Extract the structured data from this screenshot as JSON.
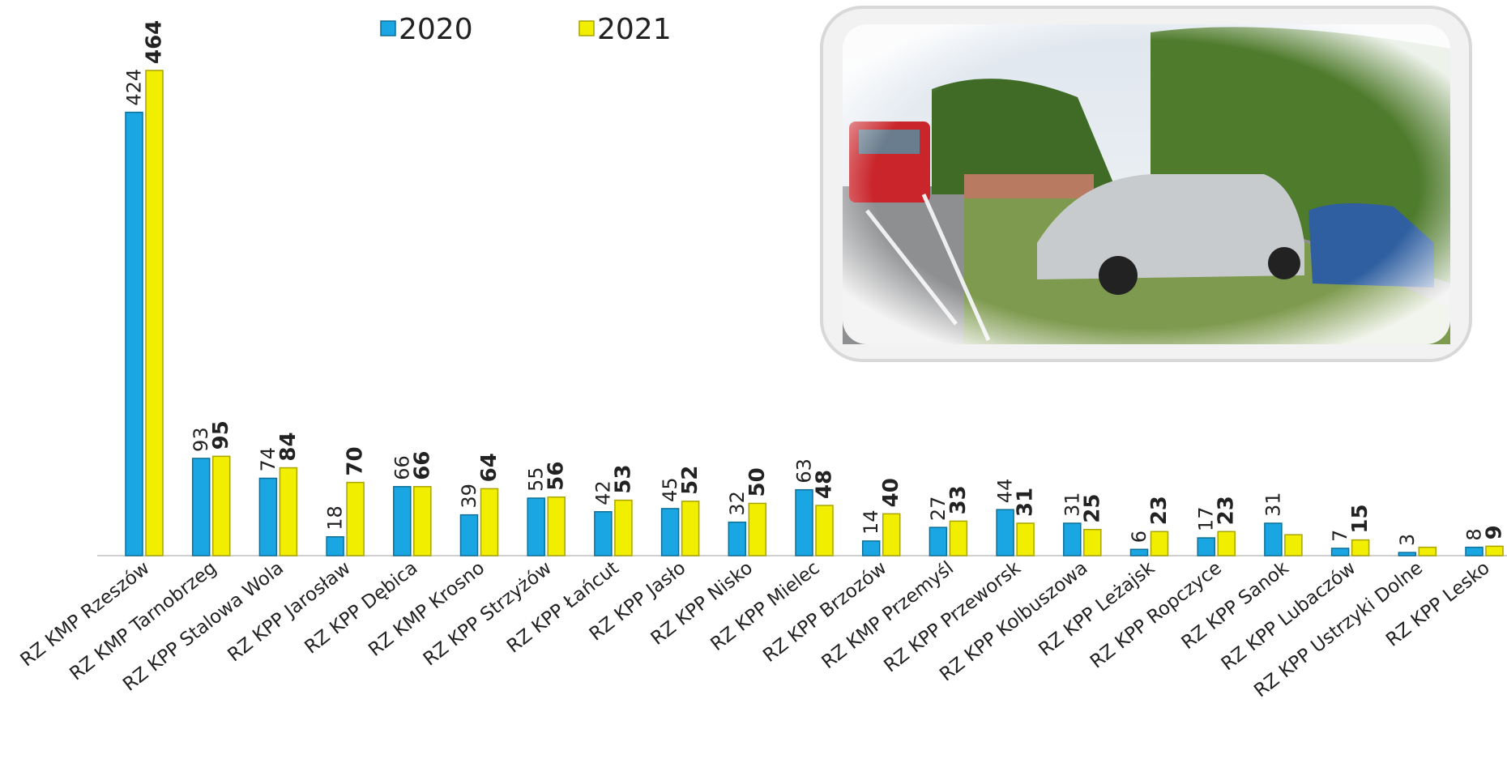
{
  "chart_data": {
    "type": "bar",
    "categories": [
      "RZ KMP Rzeszów",
      "RZ KMP Tarnobrzeg",
      "RZ KPP Stalowa Wola",
      "RZ KPP Jarosław",
      "RZ KPP Dębica",
      "RZ KMP Krosno",
      "RZ KPP Strzyżów",
      "RZ KPP Łańcut",
      "RZ KPP Jasło",
      "RZ KPP Nisko",
      "RZ KPP Mielec",
      "RZ KPP Brzozów",
      "RZ KMP Przemyśl",
      "RZ KPP Przeworsk",
      "RZ KPP Kolbuszowa",
      "RZ KPP Leżajsk",
      "RZ KPP Ropczyce",
      "RZ KPP Sanok",
      "RZ KPP Lubaczów",
      "RZ KPP Ustrzyki Dolne",
      "RZ KPP Lesko"
    ],
    "series": [
      {
        "name": "2020",
        "color": "#1aa6e2",
        "values": [
          424,
          93,
          74,
          18,
          66,
          39,
          55,
          42,
          45,
          32,
          63,
          14,
          27,
          44,
          31,
          6,
          17,
          31,
          7,
          3,
          8
        ]
      },
      {
        "name": "2021",
        "color": "#f2ee00",
        "values": [
          464,
          95,
          84,
          70,
          66,
          64,
          56,
          53,
          52,
          50,
          48,
          40,
          33,
          31,
          25,
          23,
          23,
          20,
          15,
          8,
          9
        ],
        "value_labels": [
          "464",
          "95",
          "84",
          "70",
          "66",
          "64",
          "56",
          "53",
          "52",
          "50",
          "48",
          "40",
          "33",
          "31",
          "25",
          "23",
          "23",
          null,
          "15",
          null,
          "9"
        ]
      }
    ],
    "legend": "top"
  }
}
